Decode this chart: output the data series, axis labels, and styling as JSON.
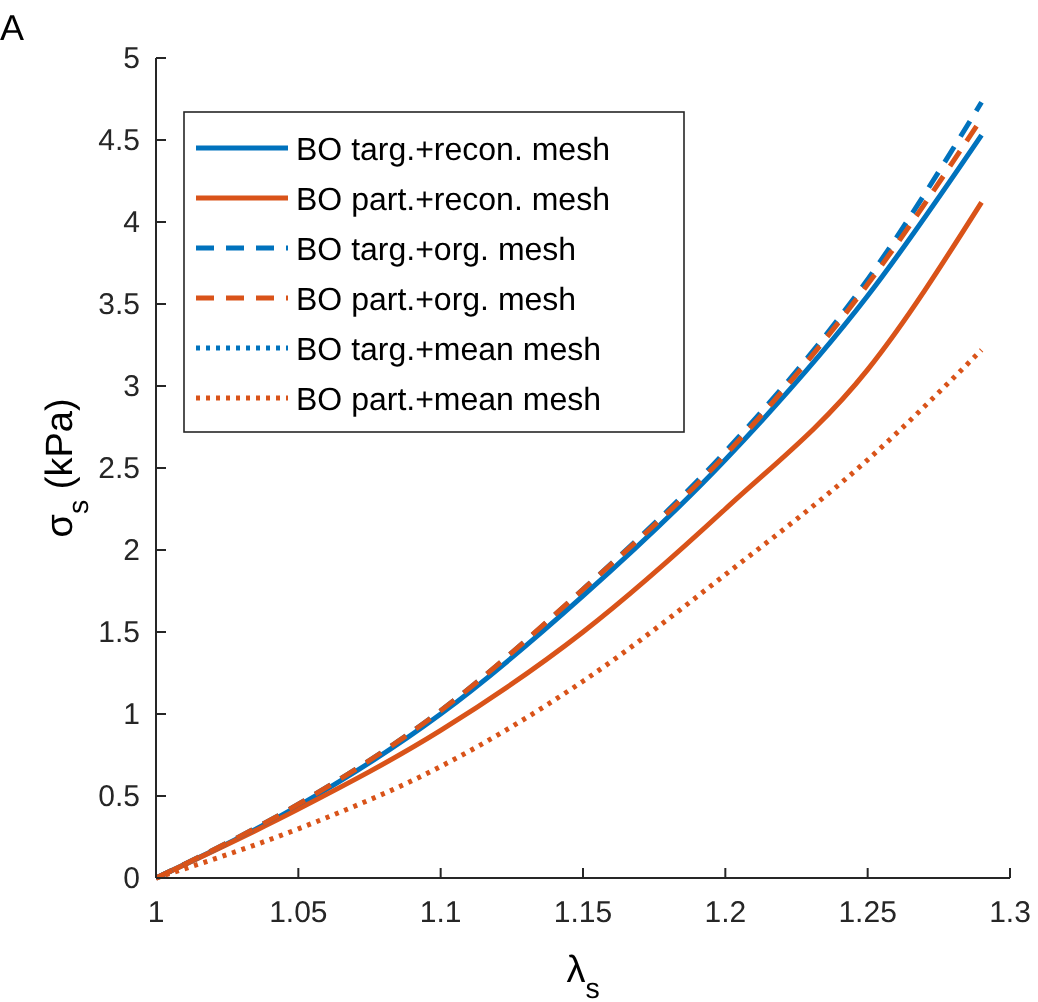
{
  "chart_data": {
    "type": "line",
    "title": "A",
    "xlabel": "λ$_{s}$",
    "ylabel": "σ$_{s}$ (kPa)",
    "x": [
      1,
      1.05,
      1.1,
      1.15,
      1.2,
      1.25,
      1.29
    ],
    "xlim": [
      1,
      1.3
    ],
    "xticks": [
      1,
      1.05,
      1.1,
      1.15,
      1.2,
      1.25,
      1.3
    ],
    "ylim": [
      0,
      5
    ],
    "yticks": [
      0,
      0.5,
      1,
      1.5,
      2,
      2.5,
      3,
      3.5,
      4,
      4.5,
      5
    ],
    "grid": false,
    "legend": "top left",
    "series": [
      {
        "name": "BO targ.+recon. mesh",
        "color": "#0072bd",
        "line_style": "solid",
        "values": [
          0,
          0.44,
          1.0,
          1.72,
          2.55,
          3.55,
          4.53
        ]
      },
      {
        "name": "BO part.+recon. mesh",
        "color": "#d95319",
        "line_style": "solid",
        "values": [
          0,
          0.42,
          0.9,
          1.5,
          2.25,
          3.1,
          4.12
        ]
      },
      {
        "name": "BO targ.+org. mesh",
        "color": "#0072bd",
        "line_style": "dashed",
        "values": [
          0,
          0.45,
          1.02,
          1.76,
          2.6,
          3.65,
          4.73
        ]
      },
      {
        "name": "BO part.+org. mesh",
        "color": "#d95319",
        "line_style": "dashed",
        "values": [
          0,
          0.45,
          1.02,
          1.76,
          2.58,
          3.62,
          4.63
        ]
      },
      {
        "name": "BO targ.+mean mesh",
        "color": "#0072bd",
        "line_style": "dotted",
        "values": [
          null,
          null,
          null,
          null,
          null,
          null,
          null
        ]
      },
      {
        "name": "BO part.+mean mesh",
        "color": "#d95319",
        "line_style": "dotted",
        "values": [
          0,
          0.3,
          0.68,
          1.2,
          1.85,
          2.55,
          3.22
        ]
      }
    ]
  }
}
